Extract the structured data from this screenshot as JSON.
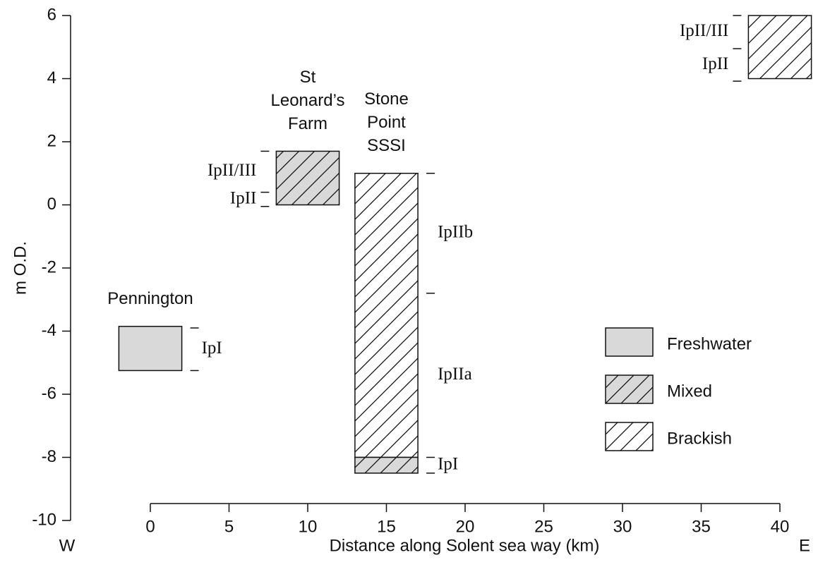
{
  "chart_data": {
    "type": "range-bar",
    "xlabel": "Distance along Solent sea way (km)",
    "ylabel": "m O.D.",
    "annotations": [
      "W",
      "E"
    ],
    "xlim": [
      0,
      40
    ],
    "xticks": [
      0,
      5,
      10,
      15,
      20,
      25,
      30,
      35,
      40
    ],
    "ylim": [
      -10,
      6
    ],
    "yticks": [
      -10,
      -8,
      -6,
      -4,
      -2,
      0,
      2,
      4,
      6
    ],
    "legend_position": "right",
    "legend": [
      {
        "name": "Freshwater",
        "color": "#d9d9d9",
        "hatch": false
      },
      {
        "name": "Mixed",
        "color": "#d9d9d9",
        "hatch": true
      },
      {
        "name": "Brackish",
        "color": "#ffffff",
        "hatch": true
      }
    ],
    "sites": [
      {
        "label": [
          "Pennington"
        ],
        "x": [
          -2,
          2
        ],
        "zone_side": "right",
        "segments": [
          {
            "kind": "Freshwater",
            "y": [
              -5.25,
              -3.85
            ]
          }
        ],
        "zones": [
          {
            "label": "IpI",
            "from": -3.9,
            "to": -5.25
          }
        ]
      },
      {
        "label": [
          "St",
          "Leonard’s",
          "Farm"
        ],
        "x": [
          8,
          12
        ],
        "zone_side": "left",
        "segments": [
          {
            "kind": "Mixed",
            "y": [
              0,
              1.7
            ]
          }
        ],
        "zones": [
          {
            "label": "IpII/III",
            "from": 1.7,
            "to": 0.4
          },
          {
            "label": "IpII",
            "from": 0.4,
            "to": -0.05
          }
        ]
      },
      {
        "label": [
          "Stone",
          "Point",
          "SSSI"
        ],
        "x": [
          13,
          17
        ],
        "zone_side": "right",
        "segments": [
          {
            "kind": "Brackish",
            "y": [
              -8,
              1
            ]
          },
          {
            "kind": "Mixed",
            "y": [
              -8.5,
              -8
            ]
          }
        ],
        "zones": [
          {
            "label": "IpIIb",
            "from": 1,
            "to": -2.8
          },
          {
            "label": "IpIIa",
            "from": -2.8,
            "to": -8
          },
          {
            "label": "IpI",
            "from": -8,
            "to": -8.5
          }
        ]
      },
      {
        "label": [],
        "x": [
          38,
          42
        ],
        "zone_side": "left",
        "segments": [
          {
            "kind": "Brackish",
            "y": [
              4,
              6
            ]
          }
        ],
        "zones": [
          {
            "label": "IpII/III",
            "from": 6,
            "to": 4.95
          },
          {
            "label": "IpII",
            "from": 4.95,
            "to": 3.92
          }
        ]
      }
    ]
  }
}
